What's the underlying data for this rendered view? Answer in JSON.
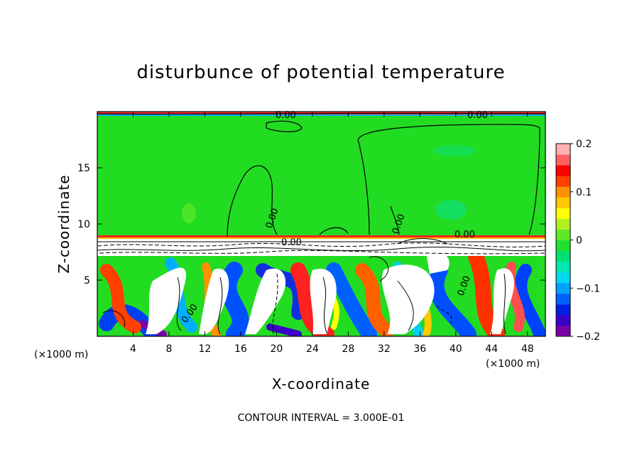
{
  "chart_data": {
    "type": "heatmap",
    "title": "disturbunce of potential temperature",
    "xlabel": "X-coordinate",
    "ylabel": "Z-coordinate",
    "x_unit_label_left": "(×1000 m)",
    "x_unit_label_right": "(×1000 m)",
    "xlim": [
      0,
      50
    ],
    "ylim": [
      0,
      20
    ],
    "x_ticks": [
      4,
      8,
      12,
      16,
      20,
      24,
      28,
      32,
      36,
      40,
      44,
      48
    ],
    "x_tick_labels": [
      "4",
      "8",
      "12",
      "16",
      "20",
      "24",
      "28",
      "32",
      "36",
      "40",
      "44",
      "48"
    ],
    "y_ticks": [
      5,
      10,
      15
    ],
    "y_tick_labels": [
      "5",
      "10",
      "15"
    ],
    "colorbar": {
      "range": [
        -0.2,
        0.2
      ],
      "ticks": [
        0.2,
        0.1,
        0,
        -0.1,
        -0.2
      ],
      "tick_labels": [
        "0.2",
        "0.1",
        "0",
        "−0.1",
        "−0.2"
      ],
      "colors": [
        "#7a00a8",
        "#3a00c8",
        "#0020e0",
        "#0060ff",
        "#00a0ff",
        "#00d8f0",
        "#00e8b0",
        "#00e070",
        "#20e030",
        "#60e828",
        "#b0f020",
        "#ffff00",
        "#ffc800",
        "#ff9000",
        "#ff4000",
        "#ff0000",
        "#ff6060",
        "#ffb0b0"
      ]
    },
    "contour_labels": [
      "0.00",
      "0.00",
      "0.00",
      "0.00",
      "0.00",
      "0.00",
      "0.00",
      "0.00"
    ],
    "contour_interval_text": "CONTOUR INTERVAL = 3.000E-01"
  }
}
